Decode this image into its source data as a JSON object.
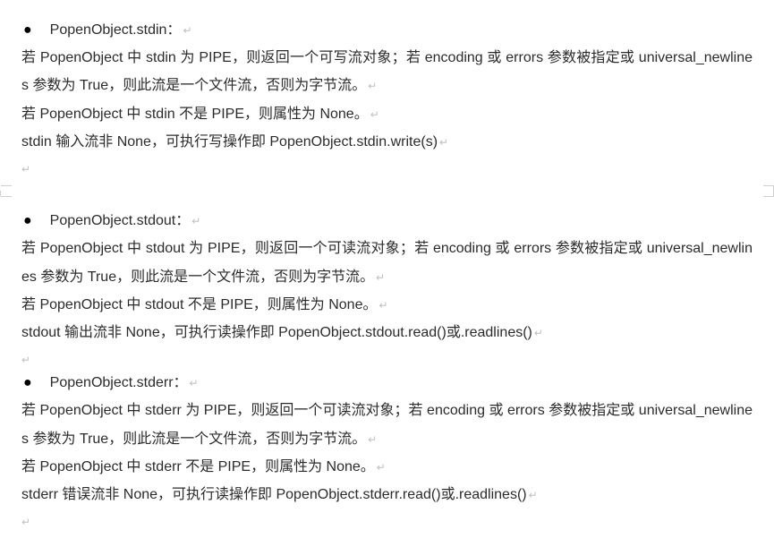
{
  "text_color": "#2b2b2b",
  "background_color": "#ffffff",
  "return_mark": "↵",
  "sections": [
    {
      "title": "PopenObject.stdin：",
      "lines": [
        "若 PopenObject 中 stdin 为 PIPE，则返回一个可写流对象；若 encoding 或 errors 参数被指定或 universal_newlines 参数为 True，则此流是一个文件流，否则为字节流。",
        "若 PopenObject 中 stdin 不是 PIPE，则属性为 None。",
        "stdin 输入流非 None，可执行写操作即 PopenObject.stdin.write(s)"
      ]
    },
    {
      "title": "PopenObject.stdout：",
      "lines": [
        "若 PopenObject 中 stdout 为 PIPE，则返回一个可读流对象；若 encoding 或 errors 参数被指定或 universal_newlines 参数为 True，则此流是一个文件流，否则为字节流。",
        "若 PopenObject 中 stdout 不是 PIPE，则属性为 None。",
        "stdout 输出流非 None，可执行读操作即 PopenObject.stdout.read()或.readlines()"
      ]
    },
    {
      "title": "PopenObject.stderr：",
      "lines": [
        "若 PopenObject 中 stderr 为 PIPE，则返回一个可读流对象；若 encoding 或 errors 参数被指定或 universal_newlines 参数为 True，则此流是一个文件流，否则为字节流。",
        "若 PopenObject 中 stderr 不是 PIPE，则属性为 None。",
        "stderr 错误流非 None，可执行读操作即 PopenObject.stderr.read()或.readlines()"
      ]
    }
  ]
}
